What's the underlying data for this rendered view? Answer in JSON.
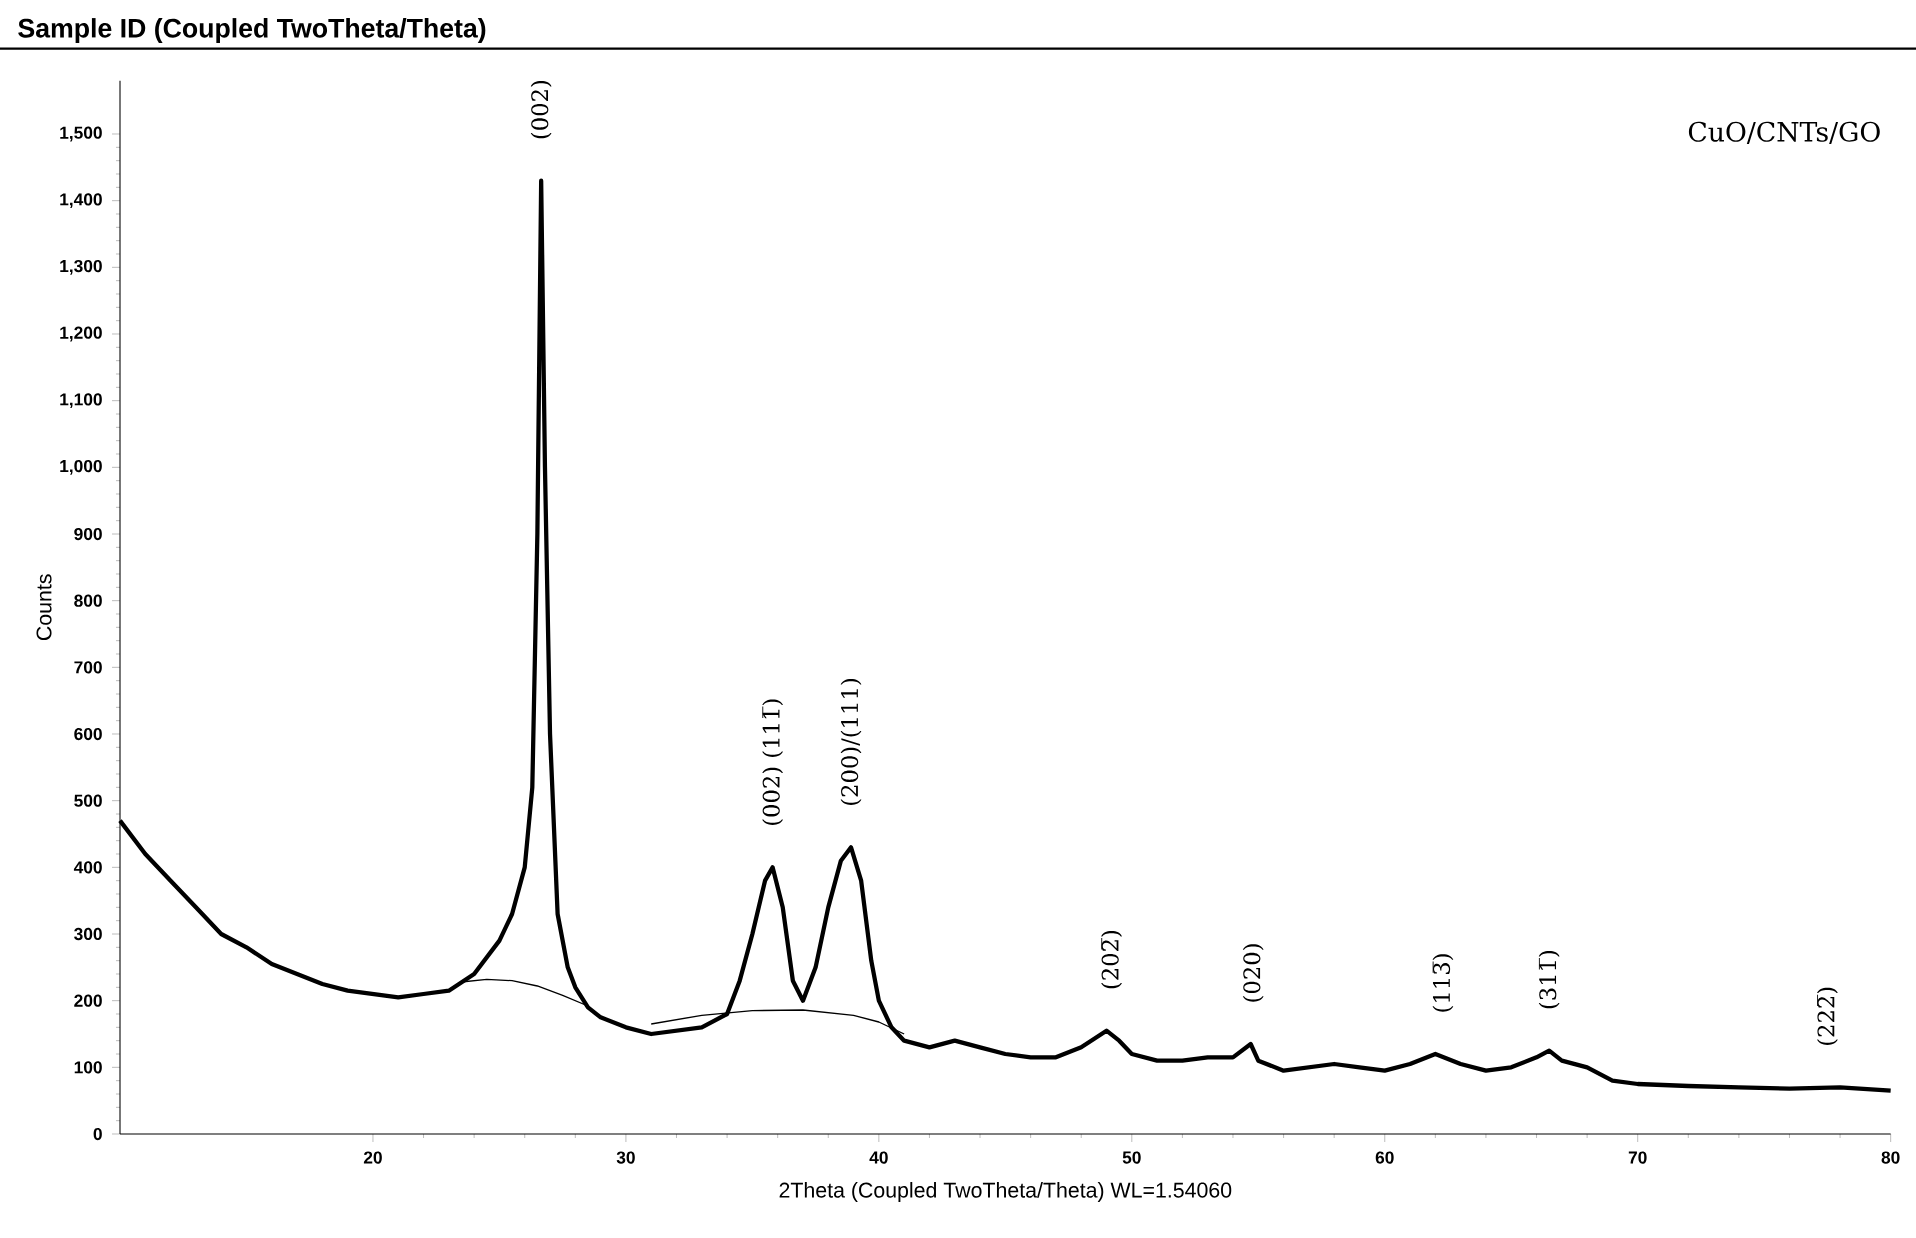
{
  "chart_data": {
    "type": "line",
    "title": "Sample ID (Coupled TwoTheta/Theta)",
    "xlabel": "2Theta (Coupled TwoTheta/Theta) WL=1.54060",
    "ylabel": "Counts",
    "xlim": [
      10,
      80
    ],
    "ylim": [
      0,
      1580
    ],
    "xticks": [
      20,
      30,
      40,
      50,
      60,
      70,
      80
    ],
    "yticks": [
      0,
      100,
      200,
      300,
      400,
      500,
      600,
      700,
      800,
      900,
      {
        "value": 1000,
        "label": "1,000"
      },
      {
        "value": 1100,
        "label": "1,100"
      },
      {
        "value": 1200,
        "label": "1,200"
      },
      {
        "value": 1300,
        "label": "1,300"
      },
      {
        "value": 1400,
        "label": "1,400"
      },
      {
        "value": 1500,
        "label": "1,500"
      }
    ],
    "series": [
      {
        "color": "#000000",
        "x": [
          10,
          11,
          12,
          13,
          14,
          15,
          16,
          17,
          18,
          19,
          20,
          21,
          22,
          23,
          24,
          25,
          25.5,
          26,
          26.3,
          26.5,
          26.65,
          26.8,
          27,
          27.3,
          27.7,
          28,
          28.5,
          29,
          30,
          31,
          32,
          33,
          34,
          34.5,
          35,
          35.5,
          35.8,
          36.2,
          36.6,
          37,
          37.5,
          38,
          38.5,
          38.9,
          39.3,
          39.7,
          40,
          40.5,
          41,
          42,
          43,
          44,
          45,
          46,
          47,
          48,
          49,
          49.5,
          50,
          51,
          52,
          53,
          54,
          54.7,
          55,
          56,
          57,
          58,
          59,
          60,
          61,
          62,
          63,
          64,
          65,
          66,
          66.5,
          67,
          68,
          69,
          70,
          72,
          74,
          76,
          78,
          80
        ],
        "values": [
          470,
          420,
          380,
          340,
          300,
          280,
          255,
          240,
          225,
          215,
          210,
          205,
          210,
          215,
          240,
          290,
          330,
          400,
          520,
          900,
          1430,
          1000,
          600,
          330,
          250,
          220,
          190,
          175,
          160,
          150,
          155,
          160,
          180,
          230,
          300,
          380,
          400,
          340,
          230,
          200,
          250,
          340,
          410,
          430,
          380,
          260,
          200,
          160,
          140,
          130,
          140,
          130,
          120,
          115,
          115,
          130,
          155,
          140,
          120,
          110,
          110,
          115,
          115,
          135,
          110,
          95,
          100,
          105,
          100,
          95,
          105,
          120,
          105,
          95,
          100,
          115,
          125,
          110,
          100,
          80,
          75,
          72,
          70,
          68,
          70,
          65
        ]
      },
      {
        "color": "#000000",
        "x": [
          23.5,
          24.5,
          25.5,
          26.5,
          27.5,
          28.5
        ],
        "values": [
          228,
          232,
          230,
          222,
          208,
          192
        ]
      },
      {
        "color": "#000000",
        "x": [
          31,
          33,
          35,
          37,
          39,
          40,
          41
        ],
        "values": [
          165,
          178,
          185,
          186,
          178,
          168,
          150
        ]
      }
    ],
    "annotations": [
      "CuO/CNTs/GO",
      {
        "text": "(002)",
        "x": 26.65,
        "y": 1430
      },
      {
        "text": "(002) (111̅)",
        "x": 35.8,
        "y": 400
      },
      {
        "text": "(200)/(111)",
        "x": 38.9,
        "y": 430
      },
      {
        "text": "(202̅)",
        "x": 49.2,
        "y": 155
      },
      {
        "text": "(020)",
        "x": 54.8,
        "y": 135
      },
      {
        "text": "(113̅)",
        "x": 62.3,
        "y": 120
      },
      {
        "text": "(311̅)",
        "x": 66.5,
        "y": 125
      },
      {
        "text": "(222̅)",
        "x": 77.5,
        "y": 70
      }
    ]
  }
}
